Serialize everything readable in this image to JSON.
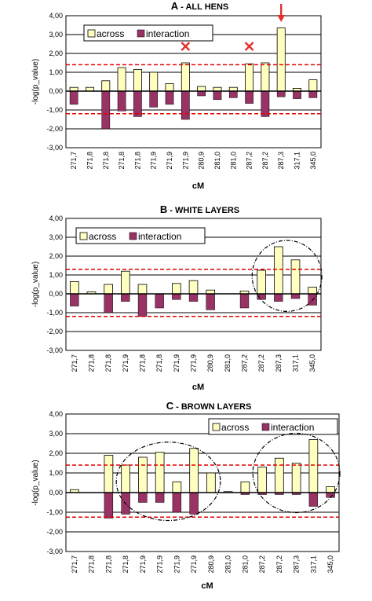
{
  "colors": {
    "across": "#ffffc0",
    "interaction": "#993366",
    "threshold": "#e00000",
    "grid": "#000000",
    "marker": "#e53030"
  },
  "legend": {
    "across": "across",
    "interaction": "interaction"
  },
  "xlabel": "cM",
  "ylabel": "-log(p_value)",
  "chart_data": [
    {
      "type": "bar",
      "title": "ALL HENS",
      "panel_letter": "A",
      "title_sep": " - ",
      "categories": [
        "271,7",
        "271,8",
        "271,8",
        "271,8",
        "271,8",
        "271,9",
        "271,9",
        "271,9",
        "280,9",
        "281,0",
        "281,0",
        "287,2",
        "287,2",
        "287,3",
        "317,1",
        "345,0"
      ],
      "series": [
        {
          "name": "across",
          "values": [
            0.2,
            0.2,
            0.55,
            1.25,
            1.15,
            1.0,
            0.4,
            1.5,
            0.25,
            0.2,
            0.2,
            1.45,
            1.5,
            3.35,
            0.15,
            0.6
          ]
        },
        {
          "name": "interaction",
          "values": [
            -0.7,
            0.0,
            -2.0,
            -1.05,
            -1.35,
            -0.85,
            -0.7,
            -1.5,
            -0.25,
            -0.45,
            -0.35,
            -0.65,
            -1.35,
            -0.3,
            -0.4,
            -0.35
          ]
        }
      ],
      "ylim": [
        -3,
        4
      ],
      "yticks": [
        "4,00",
        "3,00",
        "2,00",
        "1,00",
        "0,00",
        "-1,00",
        "-2,00",
        "-3,00"
      ],
      "thresholds": [
        1.4,
        -1.2
      ],
      "grid": true,
      "legend_position": "top-left",
      "markers": [
        {
          "type": "cross",
          "category_index": 7
        },
        {
          "type": "cross",
          "category_index": 11
        },
        {
          "type": "arrow",
          "category_index": 13
        }
      ]
    },
    {
      "type": "bar",
      "title": "WHITE LAYERS",
      "panel_letter": "B",
      "title_sep": " - ",
      "categories": [
        "271,7",
        "271,8",
        "271,8",
        "271,9",
        "271,8",
        "271,8",
        "271,9",
        "271,9",
        "280,9",
        "281,0",
        "287,2",
        "287,2",
        "287,3",
        "317,1",
        "345,0"
      ],
      "series": [
        {
          "name": "across",
          "values": [
            0.65,
            0.1,
            0.5,
            1.2,
            0.5,
            0.0,
            0.55,
            0.7,
            0.2,
            0.0,
            0.15,
            1.25,
            2.5,
            1.8,
            0.35
          ]
        },
        {
          "name": "interaction",
          "values": [
            -0.65,
            0.0,
            -1.0,
            -0.4,
            -1.2,
            -0.75,
            -0.3,
            -0.4,
            -0.85,
            0.0,
            -0.75,
            -0.3,
            -0.4,
            -0.25,
            -0.6
          ]
        }
      ],
      "ylim": [
        -3,
        4
      ],
      "yticks": [
        "4,00",
        "3,00",
        "2,00",
        "1,00",
        "0,00",
        "-1,00",
        "-2,00",
        "-3,00"
      ],
      "thresholds": [
        1.3,
        -1.2
      ],
      "grid": true,
      "legend_position": "top-left",
      "ellipses": [
        {
          "from_index": 11,
          "to_index": 14
        }
      ]
    },
    {
      "type": "bar",
      "title": "BROWN LAYERS",
      "panel_letter": "C",
      "title_sep": " - ",
      "categories": [
        "271,7",
        "271,8",
        "271,8",
        "271,8",
        "271,9",
        "271,9",
        "271,9",
        "271,9",
        "280,9",
        "281,0",
        "281,0",
        "287,2",
        "287,2",
        "287,3",
        "317,1",
        "345,0"
      ],
      "series": [
        {
          "name": "across",
          "values": [
            0.15,
            0.0,
            1.9,
            1.4,
            1.8,
            2.05,
            0.55,
            2.25,
            1.0,
            0.05,
            0.55,
            1.3,
            1.75,
            1.5,
            2.7,
            0.3
          ]
        },
        {
          "name": "interaction",
          "values": [
            0.0,
            0.0,
            -1.3,
            -1.1,
            -0.5,
            -0.5,
            -1.0,
            -1.1,
            0.0,
            0.0,
            -0.1,
            -0.1,
            -0.1,
            -0.1,
            -0.7,
            -0.25
          ]
        }
      ],
      "ylim": [
        -3,
        4
      ],
      "yticks": [
        "4,00",
        "3,00",
        "2,00",
        "1,00",
        "0,00",
        "-1,00",
        "-2,00",
        "-3,00"
      ],
      "thresholds": [
        1.4,
        -1.25
      ],
      "grid": true,
      "legend_position": "top-right",
      "ellipses": [
        {
          "from_index": 3,
          "to_index": 8
        },
        {
          "from_index": 11,
          "to_index": 15
        }
      ]
    }
  ]
}
